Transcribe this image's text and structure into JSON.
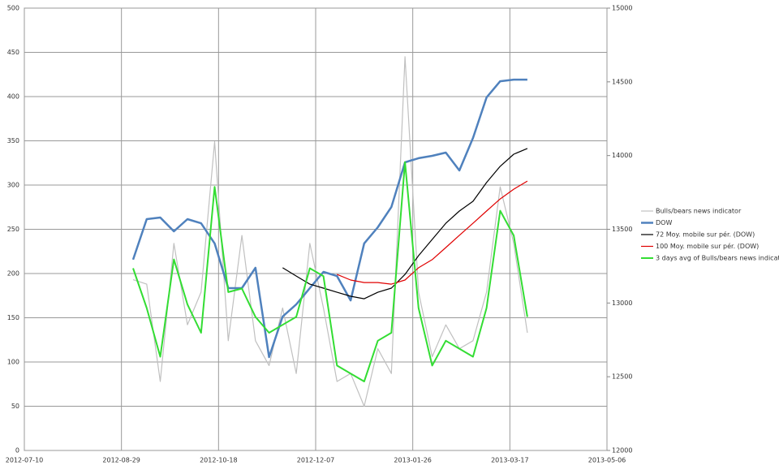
{
  "chart_data": {
    "type": "line",
    "x": [
      "2012-09-04",
      "2012-09-11",
      "2012-09-18",
      "2012-09-25",
      "2012-10-02",
      "2012-10-09",
      "2012-10-16",
      "2012-10-23",
      "2012-10-30",
      "2012-11-06",
      "2012-11-13",
      "2012-11-20",
      "2012-11-27",
      "2012-12-04",
      "2012-12-11",
      "2012-12-18",
      "2012-12-25",
      "2013-01-01",
      "2013-01-08",
      "2013-01-15",
      "2013-01-22",
      "2013-01-29",
      "2013-02-05",
      "2013-02-12",
      "2013-02-19",
      "2013-02-26",
      "2013-03-05",
      "2013-03-12",
      "2013-03-19",
      "2013-03-26"
    ],
    "xlim": [
      "2012-07-10",
      "2013-05-06"
    ],
    "xticks": [
      "2012-07-10",
      "2012-08-29",
      "2012-10-18",
      "2012-12-07",
      "2013-01-26",
      "2013-03-17",
      "2013-05-06"
    ],
    "ylim": [
      0,
      500
    ],
    "yticks": [
      0,
      50,
      100,
      150,
      200,
      250,
      300,
      350,
      400,
      450,
      500
    ],
    "y2lim": [
      12000,
      15000
    ],
    "y2ticks": [
      12000,
      12500,
      13000,
      13500,
      14000,
      14500,
      15000
    ],
    "grid": true,
    "legend": "right",
    "series": [
      {
        "name": "Bulls/bears news indicator",
        "color": "#c0c0c0",
        "width": 1.2,
        "values": [
          193,
          188,
          78,
          234,
          142,
          179,
          349,
          124,
          243,
          124,
          96,
          161,
          87,
          234,
          161,
          78,
          87,
          50,
          115,
          87,
          445,
          179,
          106,
          142,
          115,
          124,
          179,
          298,
          234,
          133
        ]
      },
      {
        "name": "DOW",
        "color": "#4f81bd",
        "width": 2.5,
        "axis": "y2",
        "values": [
          13294,
          13569,
          13580,
          13486,
          13569,
          13541,
          13404,
          13101,
          13101,
          13239,
          12633,
          12908,
          12991,
          13101,
          13211,
          13183,
          13018,
          13404,
          13514,
          13651,
          13954,
          13982,
          13998,
          14020,
          13899,
          14119,
          14394,
          14504,
          14515,
          14515
        ]
      },
      {
        "name": "72 Moy. mobile sur pér. (DOW)",
        "color": "#000000",
        "width": 1.2,
        "axis": "y2",
        "values": [
          null,
          null,
          null,
          null,
          null,
          null,
          null,
          null,
          null,
          null,
          null,
          13239,
          13183,
          13128,
          13101,
          13073,
          13046,
          13029,
          13073,
          13101,
          13194,
          13321,
          13431,
          13541,
          13624,
          13690,
          13817,
          13927,
          14009,
          14048
        ]
      },
      {
        "name": "100 Moy. mobile sur pér. (DOW)",
        "color": "#e00000",
        "width": 1.2,
        "axis": "y2",
        "values": [
          null,
          null,
          null,
          null,
          null,
          null,
          null,
          null,
          null,
          null,
          null,
          null,
          null,
          null,
          null,
          13194,
          13156,
          13139,
          13139,
          13128,
          13156,
          13239,
          13294,
          13376,
          13459,
          13541,
          13624,
          13706,
          13772,
          13827
        ]
      },
      {
        "name": "3 days avg of Bulls/bears news indicator",
        "color": "#33dd33",
        "width": 2,
        "values": [
          206,
          161,
          106,
          216,
          165,
          133,
          298,
          179,
          183,
          151,
          133,
          142,
          151,
          206,
          197,
          96,
          87,
          78,
          124,
          133,
          326,
          161,
          96,
          124,
          115,
          106,
          161,
          271,
          243,
          151
        ]
      }
    ]
  }
}
